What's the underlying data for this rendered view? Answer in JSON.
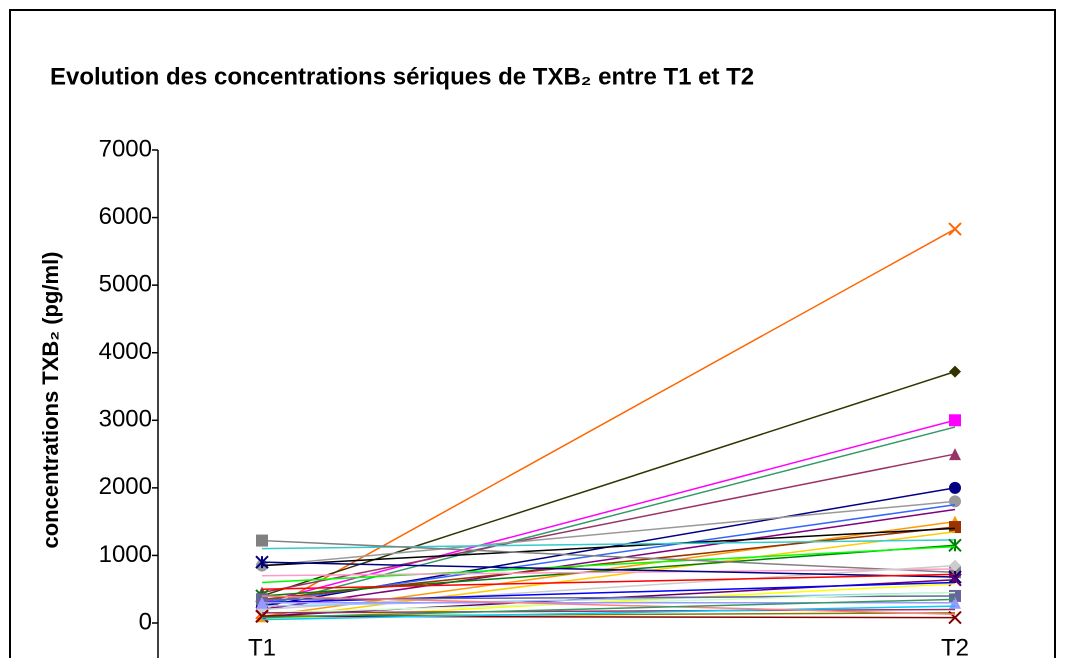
{
  "chart_data": {
    "type": "line",
    "title": "Evolution des concentrations sériques de TXB₂ entre T1 et T2",
    "y_label": "concentrations TXB₂   (pg/ml)",
    "categories": [
      "T1",
      "T2"
    ],
    "ylim": [
      0,
      7000
    ],
    "yticks": [
      0,
      1000,
      2000,
      3000,
      4000,
      5000,
      6000,
      7000
    ],
    "series": [
      {
        "color": "#ff6600",
        "marker": "x",
        "values": [
          150,
          5830
        ]
      },
      {
        "color": "#333300",
        "marker": "diamond",
        "values": [
          400,
          3720
        ]
      },
      {
        "color": "#ff00ff",
        "marker": "square",
        "values": [
          300,
          3000
        ]
      },
      {
        "color": "#339966",
        "marker": "none",
        "values": [
          250,
          2900
        ]
      },
      {
        "color": "#993366",
        "marker": "triangle",
        "values": [
          450,
          2500
        ]
      },
      {
        "color": "#000080",
        "marker": "circle",
        "values": [
          250,
          2000
        ]
      },
      {
        "color": "#999999",
        "marker": "circle",
        "values": [
          850,
          1800
        ]
      },
      {
        "color": "#3366ff",
        "marker": "none",
        "values": [
          300,
          1750
        ]
      },
      {
        "color": "#800080",
        "marker": "none",
        "values": [
          200,
          1680
        ]
      },
      {
        "color": "#ff9900",
        "marker": "triangle",
        "values": [
          100,
          1500
        ]
      },
      {
        "color": "#993300",
        "marker": "square",
        "values": [
          350,
          1420
        ]
      },
      {
        "color": "#000000",
        "marker": "none",
        "values": [
          850,
          1400
        ]
      },
      {
        "color": "#ffcc00",
        "marker": "none",
        "values": [
          50,
          1350
        ]
      },
      {
        "color": "#33cccc",
        "marker": "none",
        "values": [
          1100,
          1230
        ]
      },
      {
        "color": "#008000",
        "marker": "star",
        "values": [
          400,
          1150
        ]
      },
      {
        "color": "#00ff00",
        "marker": "none",
        "values": [
          600,
          1130
        ]
      },
      {
        "color": "#808080",
        "marker": "square",
        "values": [
          1220,
          750
        ]
      },
      {
        "color": "#ff99cc",
        "marker": "none",
        "values": [
          700,
          800
        ]
      },
      {
        "color": "#cccccc",
        "marker": "diamond",
        "values": [
          200,
          850
        ]
      },
      {
        "color": "#000080",
        "marker": "star",
        "values": [
          900,
          680
        ]
      },
      {
        "color": "#ff0000",
        "marker": "none",
        "values": [
          500,
          720
        ]
      },
      {
        "color": "#660066",
        "marker": "x",
        "values": [
          100,
          640
        ]
      },
      {
        "color": "#ffff00",
        "marker": "none",
        "values": [
          50,
          580
        ]
      },
      {
        "color": "#0000ff",
        "marker": "none",
        "values": [
          300,
          600
        ]
      },
      {
        "color": "#99ccff",
        "marker": "none",
        "values": [
          250,
          450
        ]
      },
      {
        "color": "#666699",
        "marker": "square",
        "values": [
          350,
          400
        ]
      },
      {
        "color": "#ccffcc",
        "marker": "none",
        "values": [
          150,
          450
        ]
      },
      {
        "color": "#9999ff",
        "marker": "triangle",
        "values": [
          300,
          300
        ]
      },
      {
        "color": "#993366",
        "marker": "none",
        "values": [
          150,
          200
        ]
      },
      {
        "color": "#808000",
        "marker": "none",
        "values": [
          100,
          150
        ]
      },
      {
        "color": "#800000",
        "marker": "x",
        "values": [
          100,
          80
        ]
      },
      {
        "color": "#00ccff",
        "marker": "none",
        "values": [
          50,
          250
        ]
      },
      {
        "color": "#ff8080",
        "marker": "none",
        "values": [
          400,
          130
        ]
      },
      {
        "color": "#339966",
        "marker": "none",
        "values": [
          80,
          350
        ]
      }
    ]
  }
}
